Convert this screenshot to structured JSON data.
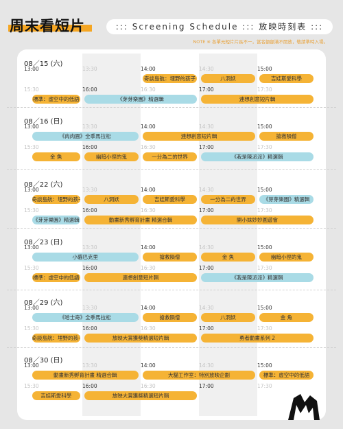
{
  "header": {
    "title": "周末看短片",
    "subtitle": "::: Screening Schedule ::: 放映時刻表 :::",
    "note": "NOTE ※ 各單元短片片長不一，當名額額滿不開放，敬請準時入場。"
  },
  "days": [
    {
      "date": "08／15 (六)",
      "rows": [
        {
          "times": [
            "13:00",
            "13:30",
            "14:00",
            "14:30",
            "15:00"
          ],
          "events": [
            {
              "label": "奇談島航：埋野的孩子",
              "color": "#f5b335"
            },
            {
              "label": "八洞妖",
              "color": "#f5b335"
            },
            {
              "label": "吉娃斯愛科學",
              "color": "#f5b335"
            }
          ]
        },
        {
          "times": [
            "15:30",
            "16:00",
            "16:30",
            "17:00",
            "17:30"
          ],
          "events": [
            {
              "label": "標準：虛空中的低語",
              "color": "#f5b335"
            },
            {
              "label": "《芽芽樂園》精選輯",
              "color": "#a9dbe6"
            },
            {
              "label": "連想創意短片輯",
              "color": "#f5b335"
            }
          ]
        }
      ]
    },
    {
      "date": "08／16 (日)",
      "rows": [
        {
          "times": [
            "13:00",
            "13:30",
            "14:00",
            "14:30",
            "15:00"
          ],
          "events": [
            {
              "label": "《肉肉圓》全季馬拉松",
              "color": "#a9dbe6"
            },
            {
              "label": "連想創意短片輯",
              "color": "#f5b335"
            },
            {
              "label": "搶救隕僧",
              "color": "#f5b335"
            }
          ]
        },
        {
          "times": [
            "15:30",
            "16:00",
            "16:30",
            "17:00",
            "17:30"
          ],
          "events": [
            {
              "label": "金 魚",
              "color": "#f5b335"
            },
            {
              "label": "幽暗小徑的鬼",
              "color": "#f5b335"
            },
            {
              "label": "一分為二的世界",
              "color": "#f5b335"
            },
            {
              "label": "《我是陳派派》精選輯",
              "color": "#a9dbe6"
            }
          ]
        }
      ]
    },
    {
      "date": "08／22 (六)",
      "rows": [
        {
          "times": [
            "13:00",
            "13:30",
            "14:00",
            "14:30",
            "15:00"
          ],
          "events": [
            {
              "label": "奇談島航：埋野的孩子",
              "color": "#f5b335"
            },
            {
              "label": "八洞妖",
              "color": "#f5b335"
            },
            {
              "label": "吉娃斯愛科學",
              "color": "#f5b335"
            },
            {
              "label": "一分為二的世界",
              "color": "#f5b335"
            },
            {
              "label": "《芽芽樂園》精選輯",
              "color": "#a9dbe6"
            }
          ]
        },
        {
          "times": [
            "15:30",
            "16:00",
            "16:30",
            "17:00",
            "17:30"
          ],
          "events": [
            {
              "label": "《芽芽樂園》精選輯",
              "color": "#a9dbe6"
            },
            {
              "label": "動畫新秀孵育計畫 精選合輯",
              "color": "#f5b335"
            },
            {
              "label": "開小妹妙妙圓遊會",
              "color": "#f5b335"
            }
          ]
        }
      ]
    },
    {
      "date": "08／23 (日)",
      "rows": [
        {
          "times": [
            "13:00",
            "13:30",
            "14:00",
            "14:30",
            "15:00"
          ],
          "events": [
            {
              "label": "小貓巴克里",
              "color": "#a9dbe6"
            },
            {
              "label": "搶救隕僧",
              "color": "#f5b335"
            },
            {
              "label": "金 魚",
              "color": "#f5b335"
            },
            {
              "label": "幽暗小徑的鬼",
              "color": "#f5b335"
            }
          ]
        },
        {
          "times": [
            "15:30",
            "16:00",
            "16:30",
            "17:00",
            "17:30"
          ],
          "events": [
            {
              "label": "標準：虛空中的低語",
              "color": "#f5b335"
            },
            {
              "label": "連想創意短片輯",
              "color": "#f5b335"
            },
            {
              "label": "《我是陳派派》精選輯",
              "color": "#a9dbe6"
            }
          ]
        }
      ]
    },
    {
      "date": "08／29 (六)",
      "rows": [
        {
          "times": [
            "13:00",
            "13:30",
            "14:00",
            "14:30",
            "15:00"
          ],
          "events": [
            {
              "label": "《哈士奇》全季馬拉松",
              "color": "#a9dbe6"
            },
            {
              "label": "搶救隕僧",
              "color": "#f5b335"
            },
            {
              "label": "八洞妖",
              "color": "#f5b335"
            },
            {
              "label": "金 魚",
              "color": "#f5b335"
            }
          ]
        },
        {
          "times": [
            "15:30",
            "16:00",
            "16:30",
            "17:00",
            "17:30"
          ],
          "events": [
            {
              "label": "奇談島航：埋野的孩子",
              "color": "#f5b335"
            },
            {
              "label": "放映大賞獲獎精選短片輯",
              "color": "#f5b335"
            },
            {
              "label": "勇者動畫系列 2",
              "color": "#f5b335"
            }
          ]
        }
      ]
    },
    {
      "date": "08／30 (日)",
      "rows": [
        {
          "times": [
            "13:00",
            "13:30",
            "14:00",
            "14:30",
            "15:00"
          ],
          "events": [
            {
              "label": "動畫新秀孵育計畫 精選合輯",
              "color": "#f5b335"
            },
            {
              "label": "大貓工作室：特別放映企劃",
              "color": "#f5b335"
            },
            {
              "label": "標準：虛空中的低語",
              "color": "#f5b335"
            }
          ]
        },
        {
          "times": [
            "15:30",
            "16:00",
            "16:30",
            "17:00",
            "17:30"
          ],
          "events": [
            {
              "label": "吉娃斯愛科學",
              "color": "#f5b335"
            },
            {
              "label": "放映大賞獲獎精選短片輯",
              "color": "#f5b335"
            }
          ]
        }
      ]
    }
  ]
}
